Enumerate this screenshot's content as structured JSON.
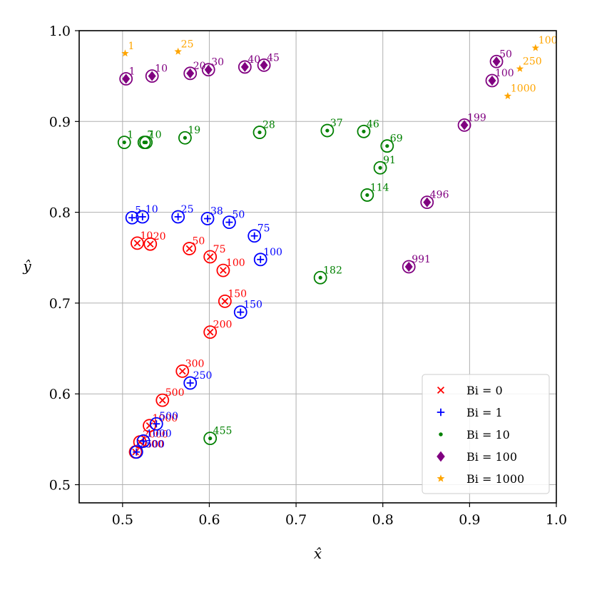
{
  "chart_data": {
    "type": "scatter",
    "xlabel": "x̂",
    "ylabel": "ŷ",
    "xlim": [
      0.45,
      1.0
    ],
    "ylim": [
      0.48,
      1.0
    ],
    "xticks": [
      "0.5",
      "0.6",
      "0.7",
      "0.8",
      "0.9",
      "1.0"
    ],
    "yticks": [
      "0.5",
      "0.6",
      "0.7",
      "0.8",
      "0.9",
      "1.0"
    ],
    "grid": true,
    "legend_position": "lower-right",
    "series": [
      {
        "name": "Bi = 0",
        "legend_label": "Bi = 0",
        "marker": "x",
        "color": "#ff0000",
        "points": [
          {
            "label": "10",
            "x": 0.517,
            "y": 0.766
          },
          {
            "label": "20",
            "x": 0.532,
            "y": 0.765
          },
          {
            "label": "50",
            "x": 0.577,
            "y": 0.76
          },
          {
            "label": "75",
            "x": 0.601,
            "y": 0.751
          },
          {
            "label": "100",
            "x": 0.616,
            "y": 0.736
          },
          {
            "label": "150",
            "x": 0.618,
            "y": 0.702
          },
          {
            "label": "200",
            "x": 0.601,
            "y": 0.668
          },
          {
            "label": "300",
            "x": 0.569,
            "y": 0.625
          },
          {
            "label": "500",
            "x": 0.546,
            "y": 0.593
          },
          {
            "label": "1000",
            "x": 0.531,
            "y": 0.565
          },
          {
            "label": "2000",
            "x": 0.52,
            "y": 0.547
          },
          {
            "label": "5000",
            "x": 0.515,
            "y": 0.536
          }
        ]
      },
      {
        "name": "Bi = 1",
        "legend_label": "Bi = 1",
        "marker": "+",
        "color": "#0000ff",
        "points": [
          {
            "label": "5",
            "x": 0.511,
            "y": 0.794
          },
          {
            "label": "10",
            "x": 0.523,
            "y": 0.795
          },
          {
            "label": "25",
            "x": 0.564,
            "y": 0.795
          },
          {
            "label": "38",
            "x": 0.598,
            "y": 0.793
          },
          {
            "label": "50",
            "x": 0.623,
            "y": 0.789
          },
          {
            "label": "75",
            "x": 0.652,
            "y": 0.774
          },
          {
            "label": "100",
            "x": 0.659,
            "y": 0.748
          },
          {
            "label": "150",
            "x": 0.636,
            "y": 0.69
          },
          {
            "label": "250",
            "x": 0.578,
            "y": 0.612
          },
          {
            "label": "500",
            "x": 0.539,
            "y": 0.567
          },
          {
            "label": "1000",
            "x": 0.524,
            "y": 0.548
          },
          {
            "label": "2500",
            "x": 0.516,
            "y": 0.536
          }
        ]
      },
      {
        "name": "Bi = 10",
        "legend_label": "Bi = 10",
        "marker": "dot",
        "color": "#008000",
        "points": [
          {
            "label": "1",
            "x": 0.502,
            "y": 0.877
          },
          {
            "label": "7",
            "x": 0.525,
            "y": 0.877
          },
          {
            "label": "10",
            "x": 0.527,
            "y": 0.877
          },
          {
            "label": "19",
            "x": 0.572,
            "y": 0.882
          },
          {
            "label": "28",
            "x": 0.658,
            "y": 0.888
          },
          {
            "label": "37",
            "x": 0.736,
            "y": 0.89
          },
          {
            "label": "46",
            "x": 0.778,
            "y": 0.889
          },
          {
            "label": "69",
            "x": 0.805,
            "y": 0.873
          },
          {
            "label": "91",
            "x": 0.797,
            "y": 0.849
          },
          {
            "label": "114",
            "x": 0.782,
            "y": 0.819
          },
          {
            "label": "182",
            "x": 0.728,
            "y": 0.728
          },
          {
            "label": "455",
            "x": 0.601,
            "y": 0.551
          }
        ]
      },
      {
        "name": "Bi = 100",
        "legend_label": "Bi = 100",
        "marker": "diamond",
        "color": "#800080",
        "points": [
          {
            "label": "1",
            "x": 0.504,
            "y": 0.947
          },
          {
            "label": "10",
            "x": 0.534,
            "y": 0.95
          },
          {
            "label": "20",
            "x": 0.578,
            "y": 0.953
          },
          {
            "label": "30",
            "x": 0.599,
            "y": 0.957
          },
          {
            "label": "40",
            "x": 0.641,
            "y": 0.96
          },
          {
            "label": "45",
            "x": 0.663,
            "y": 0.962
          },
          {
            "label": "50",
            "x": 0.931,
            "y": 0.966
          },
          {
            "label": "100",
            "x": 0.926,
            "y": 0.945
          },
          {
            "label": "199",
            "x": 0.894,
            "y": 0.896
          },
          {
            "label": "496",
            "x": 0.851,
            "y": 0.811
          },
          {
            "label": "991",
            "x": 0.83,
            "y": 0.74
          }
        ]
      },
      {
        "name": "Bi = 1000",
        "legend_label": "Bi = 1000",
        "marker": "star",
        "color": "#ffa500",
        "points": [
          {
            "label": "1",
            "x": 0.503,
            "y": 0.975
          },
          {
            "label": "25",
            "x": 0.564,
            "y": 0.977
          },
          {
            "label": "100",
            "x": 0.976,
            "y": 0.981
          },
          {
            "label": "250",
            "x": 0.958,
            "y": 0.958
          },
          {
            "label": "1000",
            "x": 0.944,
            "y": 0.928
          }
        ]
      }
    ]
  }
}
